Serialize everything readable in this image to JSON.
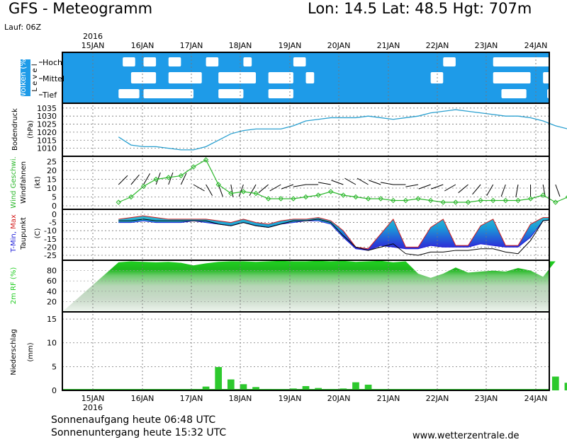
{
  "header": {
    "title": "GFS - Meteogramm",
    "coords": "Lon: 14.5 Lat: 48.5 Hgt: 707m",
    "run": "Lauf: 06Z"
  },
  "footer": {
    "sunrise": "Sonnenaufgang heute 06:48 UTC",
    "sunset": "Sonnenuntergang heute 15:32 UTC",
    "source": "www.wetterzentrale.de"
  },
  "colors": {
    "cloud": "#1e9be8",
    "pressure": "#2aa0d0",
    "wind": "#2db82d",
    "precip": "#2dc92d",
    "humidity": "#22cc22",
    "tmin": "#1c1cd8",
    "tmax": "#d41c1c",
    "dewpoint": "#000000",
    "grid": "#777777"
  },
  "chart_data": [
    {
      "type": "area",
      "panel": "clouds",
      "ylabel": "Wolken (%)",
      "level_label": "L e v e l",
      "levels": [
        "Hoch",
        "Mittel",
        "Tief"
      ],
      "x_labels": [
        "15JAN",
        "16JAN",
        "17JAN",
        "18JAN",
        "19JAN",
        "20JAN",
        "21JAN",
        "22JAN",
        "23JAN",
        "24JAN"
      ],
      "year_label": "2016",
      "x": [
        0,
        6,
        12,
        18,
        24,
        30,
        36,
        42,
        48,
        54,
        60,
        66,
        72,
        78,
        84,
        90,
        96,
        102,
        108,
        114,
        120,
        126,
        132,
        138,
        144,
        150,
        156,
        162,
        168,
        174,
        180,
        186,
        192,
        198,
        204,
        210,
        216,
        222,
        228,
        234
      ],
      "clear_segments": {
        "Hoch": [
          [
            2,
            8
          ],
          [
            12,
            18
          ],
          [
            24,
            30
          ],
          [
            42,
            48
          ],
          [
            60,
            64
          ],
          [
            84,
            90
          ],
          [
            156,
            162
          ],
          [
            180,
            216
          ],
          [
            226,
            230
          ]
        ],
        "Mittel": [
          [
            6,
            18
          ],
          [
            24,
            40
          ],
          [
            48,
            66
          ],
          [
            72,
            84
          ],
          [
            90,
            94
          ],
          [
            150,
            156
          ],
          [
            180,
            198
          ],
          [
            204,
            216
          ]
        ],
        "Tief": [
          [
            0,
            10
          ],
          [
            12,
            36
          ],
          [
            48,
            60
          ],
          [
            72,
            84
          ],
          [
            184,
            196
          ],
          [
            206,
            210
          ]
        ]
      }
    },
    {
      "type": "line",
      "panel": "pressure",
      "ylabel": "Bodendruck",
      "unit": "(hPa)",
      "yticks": [
        1010,
        1015,
        1020,
        1025,
        1030,
        1035
      ],
      "ylim": [
        1005,
        1038
      ],
      "x": [
        0,
        6,
        12,
        18,
        24,
        30,
        36,
        42,
        48,
        54,
        60,
        66,
        72,
        78,
        84,
        90,
        96,
        102,
        108,
        114,
        120,
        126,
        132,
        138,
        144,
        150,
        156,
        162,
        168,
        174,
        180,
        186,
        192,
        198,
        204,
        210,
        216,
        222,
        228,
        234
      ],
      "values": [
        1017,
        1012,
        1011,
        1011,
        1010,
        1009,
        1009,
        1011,
        1015,
        1019,
        1021,
        1022,
        1022,
        1022,
        1024,
        1027,
        1028,
        1029,
        1029,
        1029,
        1030,
        1029,
        1028,
        1029,
        1030,
        1032,
        1033,
        1034,
        1033,
        1032,
        1031,
        1030,
        1030,
        1029,
        1027,
        1024,
        1022,
        1026,
        1032,
        1035
      ]
    },
    {
      "type": "line",
      "panel": "wind",
      "ylabel": "Wind Geschwi.",
      "ylabel2": "Windfahnen",
      "unit": "(kt)",
      "yticks": [
        0,
        5,
        10,
        15,
        20,
        25
      ],
      "ylim": [
        -2,
        28
      ],
      "x": [
        0,
        6,
        12,
        18,
        24,
        30,
        36,
        42,
        48,
        54,
        60,
        66,
        72,
        78,
        84,
        90,
        96,
        102,
        108,
        114,
        120,
        126,
        132,
        138,
        144,
        150,
        156,
        162,
        168,
        174,
        180,
        186,
        192,
        198,
        204,
        210,
        216,
        222,
        228,
        234
      ],
      "values": [
        2,
        5,
        11,
        15,
        16,
        17,
        22,
        26,
        12,
        7,
        8,
        7,
        4,
        4,
        4,
        5,
        6,
        8,
        6,
        5,
        4,
        4,
        3,
        3,
        4,
        3,
        2,
        2,
        2,
        3,
        3,
        3,
        3,
        4,
        6,
        2,
        5,
        7,
        6,
        4
      ],
      "barb_directions": [
        45,
        40,
        30,
        20,
        20,
        25,
        120,
        150,
        160,
        170,
        200,
        210,
        230,
        240,
        250,
        260,
        270,
        280,
        290,
        300,
        300,
        290,
        280,
        270,
        260,
        250,
        250,
        240,
        230,
        220,
        210,
        200,
        190,
        180,
        170,
        160,
        150,
        140,
        130,
        120
      ]
    },
    {
      "type": "area",
      "panel": "temperature",
      "ylabel": "T-Min, Max",
      "ylabel2": "Taupunkt",
      "unit": "(C)",
      "yticks": [
        0,
        -5,
        -10,
        -15,
        -20,
        -25
      ],
      "ylim": [
        -28,
        3
      ],
      "x": [
        0,
        6,
        12,
        18,
        24,
        30,
        36,
        42,
        48,
        54,
        60,
        66,
        72,
        78,
        84,
        90,
        96,
        102,
        108,
        114,
        120,
        126,
        132,
        138,
        144,
        150,
        156,
        162,
        168,
        174,
        180,
        186,
        192,
        198,
        204,
        210,
        216,
        222,
        228,
        234
      ],
      "series": [
        {
          "name": "T-Max",
          "values": [
            -3,
            -2,
            -1,
            -2,
            -3,
            -3,
            -3,
            -3,
            -4,
            -5,
            -3,
            -5,
            -6,
            -4,
            -3,
            -3,
            -2,
            -4,
            -10,
            -20,
            -21,
            -12,
            -3,
            -20,
            -20,
            -8,
            -3,
            -19,
            -19,
            -7,
            -3,
            -19,
            -19,
            -6,
            -2,
            -2,
            -1,
            0,
            -2,
            -5
          ]
        },
        {
          "name": "T-Min",
          "values": [
            -5,
            -5,
            -4,
            -5,
            -5,
            -5,
            -4,
            -5,
            -6,
            -7,
            -5,
            -7,
            -8,
            -6,
            -5,
            -4,
            -4,
            -6,
            -14,
            -21,
            -22,
            -19,
            -20,
            -21,
            -21,
            -19,
            -20,
            -20,
            -20,
            -18,
            -19,
            -20,
            -20,
            -14,
            -4,
            -3,
            -2,
            -2,
            -4,
            -7
          ]
        },
        {
          "name": "Taupunkt",
          "values": [
            -4,
            -4,
            -3,
            -4,
            -4,
            -4,
            -4,
            -4,
            -6,
            -7,
            -5,
            -7,
            -8,
            -6,
            -4,
            -4,
            -3,
            -5,
            -13,
            -20,
            -22,
            -20,
            -18,
            -24,
            -25,
            -23,
            -23,
            -22,
            -22,
            -21,
            -21,
            -23,
            -24,
            -16,
            -4,
            -3,
            -2,
            -2,
            -5,
            -8
          ]
        }
      ]
    },
    {
      "type": "area",
      "panel": "humidity",
      "ylabel": "2m RF (%)",
      "yticks": [
        20,
        40,
        60,
        80
      ],
      "ylim": [
        0,
        100
      ],
      "x": [
        0,
        6,
        12,
        18,
        24,
        30,
        36,
        42,
        48,
        54,
        60,
        66,
        72,
        78,
        84,
        90,
        96,
        102,
        108,
        114,
        120,
        126,
        132,
        138,
        144,
        150,
        156,
        162,
        168,
        174,
        180,
        186,
        192,
        198,
        204,
        210,
        216,
        222,
        228,
        234
      ],
      "values": [
        96,
        98,
        97,
        96,
        97,
        95,
        90,
        94,
        97,
        98,
        98,
        97,
        98,
        99,
        98,
        98,
        99,
        98,
        99,
        97,
        98,
        99,
        96,
        98,
        74,
        66,
        74,
        86,
        76,
        78,
        80,
        78,
        85,
        80,
        68,
        98,
        98,
        98,
        98,
        98
      ]
    },
    {
      "type": "bar",
      "panel": "precipitation",
      "ylabel": "Niederschlag",
      "unit": "(mm)",
      "yticks": [
        0,
        5,
        10,
        15
      ],
      "ylim": [
        0,
        16.5
      ],
      "x": [
        0,
        6,
        12,
        18,
        24,
        30,
        36,
        42,
        48,
        54,
        60,
        66,
        72,
        78,
        84,
        90,
        96,
        102,
        108,
        114,
        120,
        126,
        132,
        138,
        144,
        150,
        156,
        162,
        168,
        174,
        180,
        186,
        192,
        198,
        204,
        210,
        216,
        222,
        228,
        234
      ],
      "values": [
        0,
        0,
        0,
        0,
        0,
        0,
        0.3,
        0.8,
        4.9,
        2.3,
        1.3,
        0.7,
        0.3,
        0.2,
        0.4,
        0.9,
        0.5,
        0.3,
        0.4,
        1.7,
        1.2,
        0.2,
        0,
        0,
        0,
        0,
        0,
        0,
        0,
        0,
        0,
        0,
        0,
        0,
        0,
        2.9,
        1.6,
        0,
        0.8,
        0
      ]
    }
  ]
}
